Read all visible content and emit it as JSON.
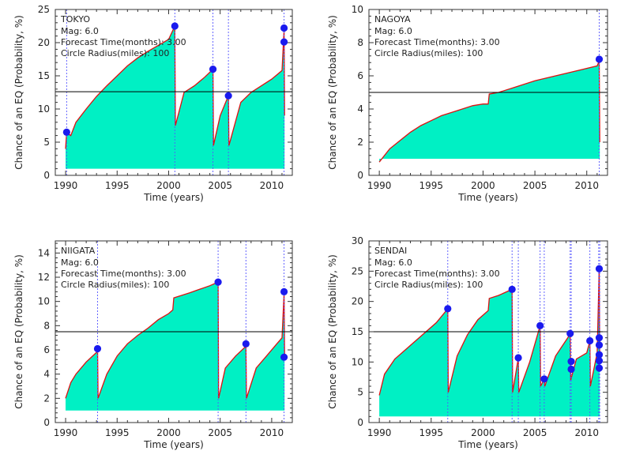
{
  "chart_data": [
    {
      "type": "area",
      "title": "TOKYO",
      "annotations": [
        "Mag: 6.0",
        "Forecast Time(months): 3.00",
        "Circle Radius(miles): 100"
      ],
      "xlabel": "Time (years)",
      "ylabel": "Chance of an EQ (Probability, %)",
      "xlim": [
        1989.0,
        2012.0
      ],
      "ylim": [
        0,
        25
      ],
      "xticks": [
        1990,
        1995,
        2000,
        2005,
        2010
      ],
      "yticks": [
        0,
        5,
        10,
        15,
        20,
        25
      ],
      "threshold": 12.6,
      "event_years": [
        1990.1,
        2000.6,
        2004.3,
        2005.8,
        2011.2
      ],
      "series": [
        {
          "x": [
            1990.0,
            1990.1,
            1990.5,
            1991.0,
            1992.0,
            1993.0,
            1994.0,
            1995.0,
            1996.0,
            1997.0,
            1998.0,
            1999.0,
            2000.0,
            2000.6,
            2000.65,
            2001.5,
            2002.5,
            2003.5,
            2004.3,
            2004.35,
            2005.0,
            2005.8,
            2005.85,
            2007.0,
            2008.0,
            2009.0,
            2010.0,
            2011.0,
            2011.2,
            2011.25
          ],
          "y": [
            4.0,
            6.4,
            6.0,
            8.0,
            10.0,
            11.9,
            13.5,
            15.0,
            16.5,
            17.7,
            18.7,
            19.6,
            20.5,
            22.5,
            7.5,
            12.5,
            13.5,
            14.8,
            16.0,
            4.5,
            9.0,
            12.0,
            4.5,
            11.0,
            12.5,
            13.5,
            14.5,
            15.8,
            22.0,
            9.0
          ]
        }
      ],
      "markers": [
        {
          "x": 1990.1,
          "y": 6.5
        },
        {
          "x": 2000.6,
          "y": 22.5
        },
        {
          "x": 2004.3,
          "y": 16.0
        },
        {
          "x": 2005.8,
          "y": 12.0
        },
        {
          "x": 2011.2,
          "y": 22.2
        },
        {
          "x": 2011.2,
          "y": 20.1
        }
      ]
    },
    {
      "type": "area",
      "title": "NAGOYA",
      "annotations": [
        "Mag: 6.0",
        "Forecast Time(months): 3.00",
        "Circle Radius(miles): 100"
      ],
      "xlabel": "Time (years)",
      "ylabel": "Chance of an EQ (Probability, %)",
      "xlim": [
        1989.0,
        2012.0
      ],
      "ylim": [
        0,
        10
      ],
      "xticks": [
        1990,
        1995,
        2000,
        2005,
        2010
      ],
      "yticks": [
        0,
        2,
        4,
        6,
        8,
        10
      ],
      "threshold": 5.0,
      "event_years": [
        2011.2
      ],
      "series": [
        {
          "x": [
            1990.0,
            1991.0,
            1992.0,
            1993.0,
            1994.0,
            1995.0,
            1996.0,
            1997.0,
            1998.0,
            1999.0,
            2000.0,
            2000.5,
            2000.6,
            2001.5,
            2003.0,
            2005.0,
            2007.0,
            2009.0,
            2011.0,
            2011.2,
            2011.25
          ],
          "y": [
            0.8,
            1.6,
            2.1,
            2.6,
            3.0,
            3.3,
            3.6,
            3.8,
            4.0,
            4.2,
            4.3,
            4.3,
            4.9,
            5.0,
            5.3,
            5.7,
            6.0,
            6.3,
            6.6,
            6.9,
            2.0
          ]
        }
      ],
      "markers": [
        {
          "x": 2011.2,
          "y": 7.0
        }
      ]
    },
    {
      "type": "area",
      "title": "NIIGATA",
      "annotations": [
        "Mag: 6.0",
        "Forecast Time(months): 3.00",
        "Circle Radius(miles): 100"
      ],
      "xlabel": "Time (years)",
      "ylabel": "Chance of an EQ (Probability, %)",
      "xlim": [
        1989.0,
        2012.0
      ],
      "ylim": [
        0,
        15
      ],
      "xticks": [
        1990,
        1995,
        2000,
        2005,
        2010
      ],
      "yticks": [
        0,
        2,
        4,
        6,
        8,
        10,
        12,
        14
      ],
      "threshold": 7.5,
      "event_years": [
        1993.1,
        2004.8,
        2007.5,
        2011.2
      ],
      "series": [
        {
          "x": [
            1990.0,
            1990.5,
            1991.0,
            1992.0,
            1993.0,
            1993.1,
            1993.15,
            1994.0,
            1995.0,
            1996.0,
            1997.0,
            1998.0,
            1999.0,
            2000.0,
            2000.4,
            2000.5,
            2002.0,
            2003.0,
            2004.0,
            2004.8,
            2004.85,
            2005.5,
            2006.5,
            2007.5,
            2007.55,
            2008.5,
            2009.5,
            2010.5,
            2011.0,
            2011.2,
            2011.25
          ],
          "y": [
            2.0,
            3.3,
            4.0,
            5.0,
            5.8,
            6.1,
            2.0,
            4.0,
            5.5,
            6.5,
            7.2,
            7.8,
            8.5,
            9.0,
            9.3,
            10.3,
            10.7,
            11.0,
            11.3,
            11.6,
            2.0,
            4.5,
            5.5,
            6.3,
            2.0,
            4.5,
            5.5,
            6.5,
            7.0,
            10.7,
            5.5
          ]
        }
      ],
      "markers": [
        {
          "x": 1993.1,
          "y": 6.1
        },
        {
          "x": 2004.8,
          "y": 11.6
        },
        {
          "x": 2007.5,
          "y": 6.5
        },
        {
          "x": 2011.2,
          "y": 10.8
        },
        {
          "x": 2011.2,
          "y": 5.4
        }
      ]
    },
    {
      "type": "area",
      "title": "SENDAI",
      "annotations": [
        "Mag: 6.0",
        "Forecast Time(months): 3.00",
        "Circle Radius(miles): 100"
      ],
      "xlabel": "Time (years)",
      "ylabel": "Chance of an EQ (Probability, %)",
      "xlim": [
        1989.0,
        2012.0
      ],
      "ylim": [
        0,
        30
      ],
      "xticks": [
        1990,
        1995,
        2000,
        2005,
        2010
      ],
      "yticks": [
        0,
        5,
        10,
        15,
        20,
        25,
        30
      ],
      "threshold": 15.0,
      "event_years": [
        1996.6,
        2002.8,
        2003.4,
        2005.5,
        2005.9,
        2008.4,
        2008.5,
        2010.3,
        2011.15,
        2011.25
      ],
      "series": [
        {
          "x": [
            1990.0,
            1990.5,
            1991.5,
            1992.5,
            1993.5,
            1994.5,
            1995.5,
            1996.6,
            1996.65,
            1997.5,
            1998.5,
            1999.5,
            2000.5,
            2000.6,
            2001.5,
            2002.8,
            2002.85,
            2003.4,
            2003.45,
            2004.5,
            2005.5,
            2005.55,
            2005.9,
            2005.95,
            2007.0,
            2008.4,
            2008.45,
            2009.0,
            2010.0,
            2010.3,
            2010.35,
            2011.0,
            2011.2,
            2011.25
          ],
          "y": [
            4.5,
            8.0,
            10.5,
            12.0,
            13.5,
            15.0,
            16.5,
            18.8,
            5.0,
            11.0,
            14.5,
            17.0,
            18.5,
            20.5,
            21.0,
            22.0,
            5.0,
            10.7,
            5.0,
            10.0,
            16.0,
            6.0,
            7.2,
            6.0,
            11.0,
            14.6,
            7.0,
            10.5,
            11.5,
            13.5,
            6.0,
            11.5,
            25.5,
            10.0
          ]
        }
      ],
      "markers": [
        {
          "x": 1996.6,
          "y": 18.8
        },
        {
          "x": 2002.8,
          "y": 22.0
        },
        {
          "x": 2003.4,
          "y": 10.7
        },
        {
          "x": 2005.5,
          "y": 16.0
        },
        {
          "x": 2005.9,
          "y": 7.2
        },
        {
          "x": 2008.4,
          "y": 14.7
        },
        {
          "x": 2008.5,
          "y": 10.1
        },
        {
          "x": 2008.5,
          "y": 8.8
        },
        {
          "x": 2010.3,
          "y": 13.5
        },
        {
          "x": 2011.2,
          "y": 25.4
        },
        {
          "x": 2011.2,
          "y": 14.0
        },
        {
          "x": 2011.2,
          "y": 12.8
        },
        {
          "x": 2011.2,
          "y": 11.2
        },
        {
          "x": 2011.2,
          "y": 10.2
        },
        {
          "x": 2011.2,
          "y": 9.0
        }
      ]
    }
  ],
  "colors": {
    "fill": "#00f0c4",
    "line": "#dd1111",
    "marker": "#1a1aee",
    "event_line": "#5555ff",
    "threshold": "#000000",
    "axis": "#333333"
  }
}
